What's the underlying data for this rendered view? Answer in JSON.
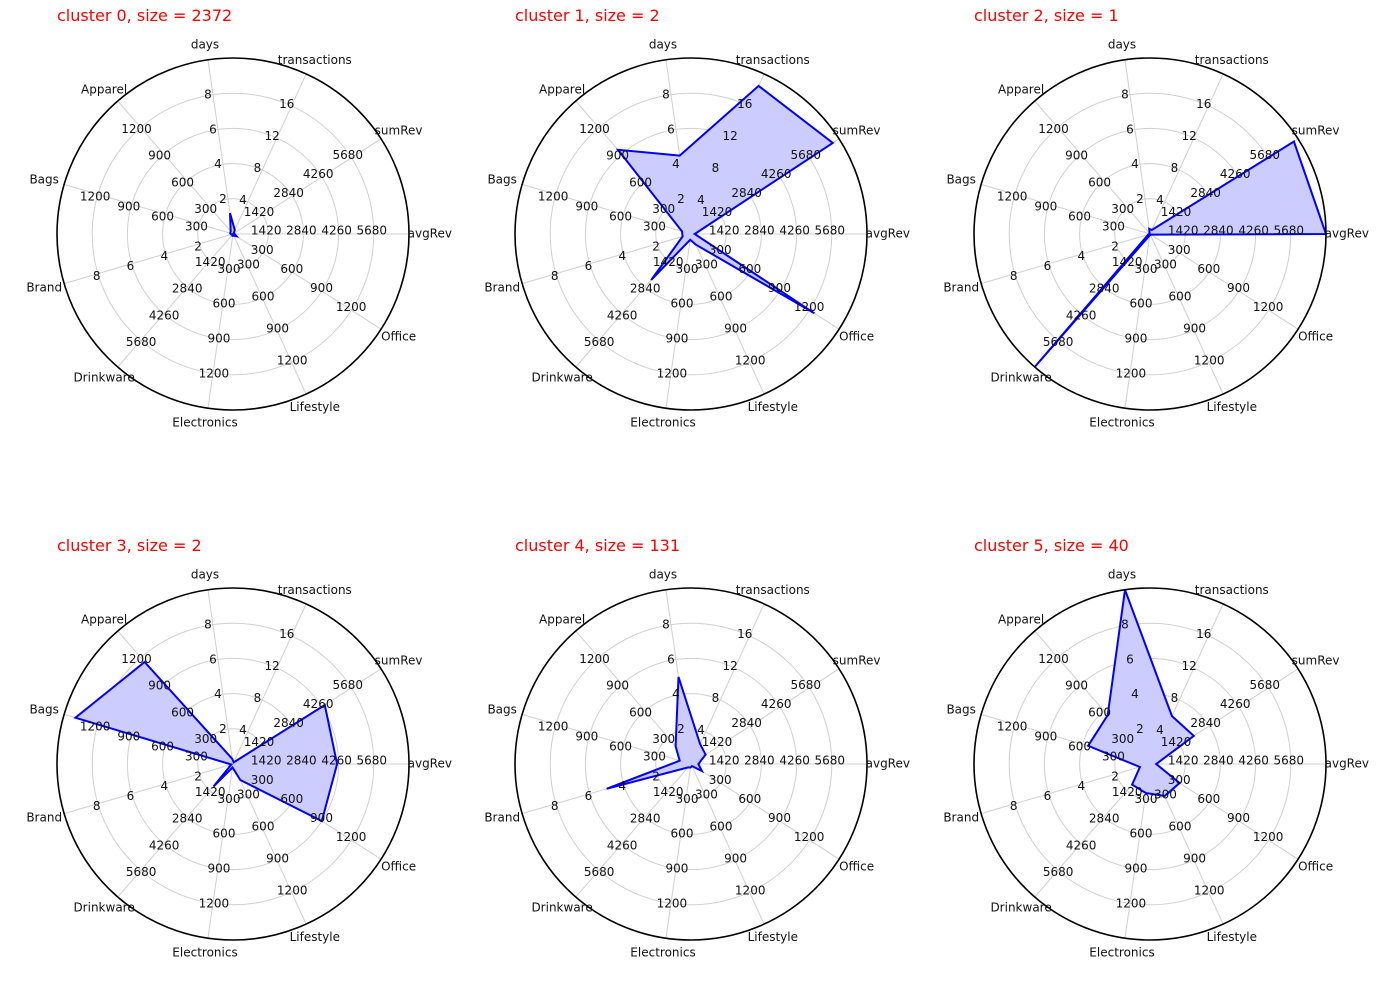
{
  "style": {
    "title_color": "#ff0000",
    "line_color": "#0000ff",
    "fill_color": "#ccccff",
    "grid_color": "#d0d0d0",
    "frame_color": "#000000",
    "grid": true
  },
  "axes": [
    {
      "label": "avgRev",
      "ticks": [
        "1420",
        "2840",
        "4260",
        "5680"
      ],
      "max": 7100
    },
    {
      "label": "sumRev",
      "ticks": [
        "1420",
        "2840",
        "4260",
        "5680"
      ],
      "max": 7100
    },
    {
      "label": "transactions",
      "ticks": [
        "4",
        "8",
        "12",
        "16"
      ],
      "max": 20
    },
    {
      "label": "days",
      "ticks": [
        "2",
        "4",
        "6",
        "8"
      ],
      "max": 10
    },
    {
      "label": "Apparel",
      "ticks": [
        "300",
        "600",
        "900",
        "1200"
      ],
      "max": 1500
    },
    {
      "label": "Bags",
      "ticks": [
        "300",
        "600",
        "900",
        "1200"
      ],
      "max": 1500
    },
    {
      "label": "Brand",
      "ticks": [
        "2",
        "4",
        "6",
        "8"
      ],
      "max": 10
    },
    {
      "label": "Drinkware",
      "ticks": [
        "1420",
        "2840",
        "4260",
        "5680"
      ],
      "max": 7100
    },
    {
      "label": "Electronics",
      "ticks": [
        "300",
        "600",
        "900",
        "1200"
      ],
      "max": 1500
    },
    {
      "label": "Lifestyle",
      "ticks": [
        "300",
        "600",
        "900",
        "1200"
      ],
      "max": 1500
    },
    {
      "label": "Office",
      "ticks": [
        "300",
        "600",
        "900",
        "1200"
      ],
      "max": 1500
    }
  ],
  "chart_data": [
    {
      "type": "radar",
      "title": "cluster 0, size = 2372",
      "categories": [
        "avgRev",
        "sumRev",
        "transactions",
        "days",
        "Apparel",
        "Bags",
        "Brand",
        "Drinkware",
        "Electronics",
        "Lifestyle",
        "Office"
      ],
      "values": [
        60,
        30,
        0.5,
        1.2,
        30,
        25,
        0.1,
        15,
        15,
        15,
        35
      ]
    },
    {
      "type": "radar",
      "title": "cluster 1, size = 2",
      "categories": [
        "avgRev",
        "sumRev",
        "transactions",
        "days",
        "Apparel",
        "Bags",
        "Brand",
        "Drinkware",
        "Electronics",
        "Lifestyle",
        "Office"
      ],
      "values": [
        150,
        6800,
        18.5,
        4.5,
        950,
        80,
        0.5,
        2450,
        50,
        100,
        1250
      ]
    },
    {
      "type": "radar",
      "title": "cluster 2, size = 1",
      "categories": [
        "avgRev",
        "sumRev",
        "transactions",
        "days",
        "Apparel",
        "Bags",
        "Brand",
        "Drinkware",
        "Electronics",
        "Lifestyle",
        "Office"
      ],
      "values": [
        7100,
        6900,
        0.5,
        0.3,
        5,
        5,
        0.1,
        7100,
        10,
        10,
        10
      ]
    },
    {
      "type": "radar",
      "title": "cluster 3, size = 2",
      "categories": [
        "avgRev",
        "sumRev",
        "transactions",
        "days",
        "Apparel",
        "Bags",
        "Brand",
        "Drinkware",
        "Electronics",
        "Lifestyle",
        "Office"
      ],
      "values": [
        4200,
        4400,
        0.2,
        0.3,
        1150,
        1400,
        0.1,
        1200,
        30,
        150,
        900
      ]
    },
    {
      "type": "radar",
      "title": "cluster 4, size = 131",
      "categories": [
        "avgRev",
        "sumRev",
        "transactions",
        "days",
        "Apparel",
        "Bags",
        "Brand",
        "Drinkware",
        "Electronics",
        "Lifestyle",
        "Office"
      ],
      "values": [
        300,
        700,
        2.5,
        5,
        200,
        100,
        5,
        180,
        30,
        20,
        110
      ]
    },
    {
      "type": "radar",
      "title": "cluster 5, size = 40",
      "categories": [
        "avgRev",
        "sumRev",
        "transactions",
        "days",
        "Apparel",
        "Bags",
        "Brand",
        "Drinkware",
        "Electronics",
        "Lifestyle",
        "Office"
      ],
      "values": [
        250,
        2100,
        6,
        10,
        550,
        550,
        0.6,
        1100,
        250,
        300,
        300
      ]
    }
  ]
}
